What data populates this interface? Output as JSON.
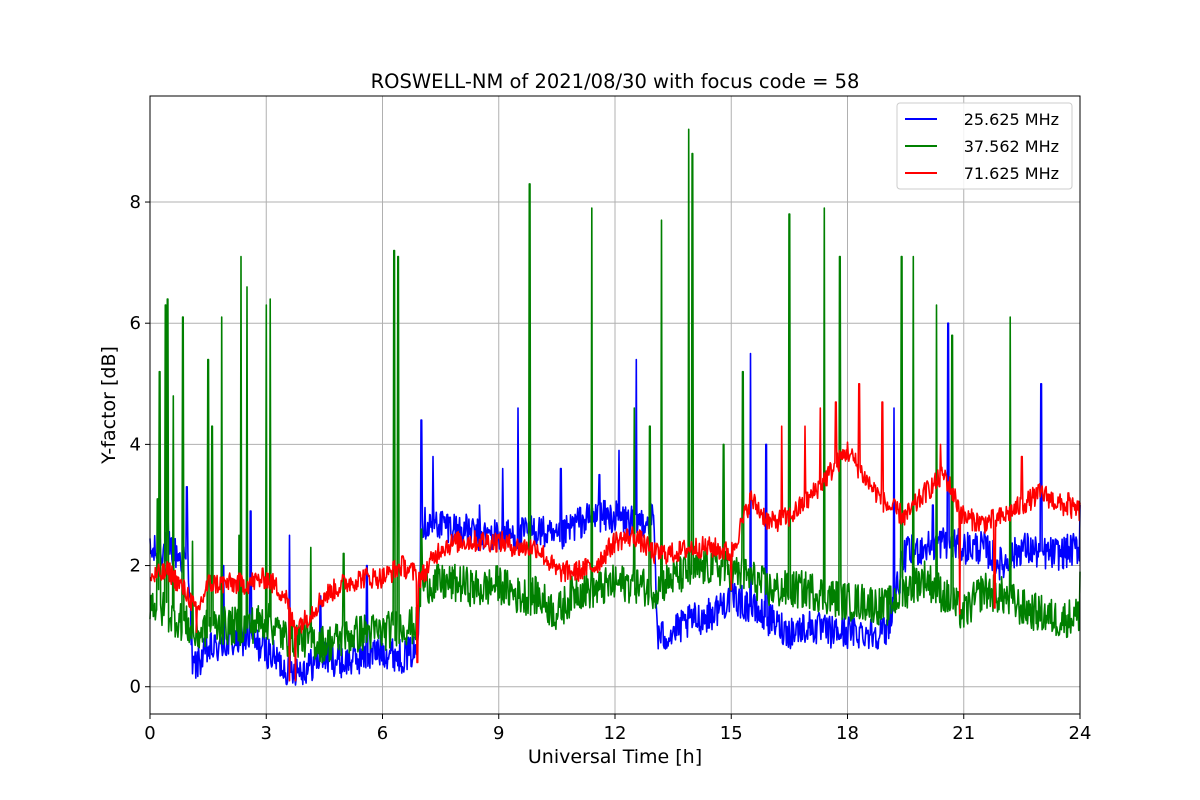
{
  "chart_data": {
    "type": "line",
    "title": "ROSWELL-NM of 2021/08/30 with focus code = 58",
    "xlabel": "Universal Time [h]",
    "ylabel": "Y-factor [dB]",
    "xlim": [
      0,
      24
    ],
    "ylim": [
      -0.45,
      9.75
    ],
    "xticks": [
      0,
      3,
      6,
      9,
      12,
      15,
      18,
      21,
      24
    ],
    "yticks": [
      0,
      2,
      4,
      6,
      8
    ],
    "grid": true,
    "legend_position": "top-right",
    "series": [
      {
        "name": "25.625 MHz",
        "color": "#0000ff",
        "x": [
          0,
          0.5,
          1.0,
          1.1,
          1.5,
          2,
          2.5,
          3,
          3.5,
          4,
          4.5,
          5,
          5.5,
          6,
          6.5,
          6.9,
          7.0,
          7.5,
          8,
          8.5,
          9,
          9.5,
          10,
          10.5,
          11,
          11.5,
          12,
          12.5,
          13,
          13.1,
          13.5,
          14,
          14.5,
          15,
          15.5,
          16,
          16.5,
          17,
          17.5,
          18,
          18.5,
          19,
          19.5,
          20,
          20.5,
          21,
          21.5,
          22,
          22.5,
          23,
          23.5,
          24
        ],
        "y": [
          2.2,
          2.3,
          2.0,
          0.3,
          0.6,
          0.7,
          0.8,
          0.6,
          0.3,
          0.3,
          0.5,
          0.4,
          0.5,
          0.6,
          0.5,
          0.6,
          2.7,
          2.7,
          2.6,
          2.5,
          2.5,
          2.5,
          2.6,
          2.4,
          2.7,
          2.8,
          2.8,
          2.7,
          2.8,
          0.8,
          0.9,
          1.1,
          1.2,
          1.5,
          1.3,
          1.1,
          0.9,
          1.0,
          0.9,
          0.9,
          0.9,
          0.9,
          2.2,
          2.3,
          2.4,
          2.3,
          2.3,
          2.0,
          2.3,
          2.2,
          2.2,
          2.3
        ],
        "spikes": [
          [
            0.25,
            2.6
          ],
          [
            0.45,
            2.9
          ],
          [
            0.95,
            3.3
          ],
          [
            1.9,
            2.0
          ],
          [
            2.5,
            2.1
          ],
          [
            2.6,
            2.9
          ],
          [
            3.6,
            2.5
          ],
          [
            4.4,
            1.5
          ],
          [
            5.6,
            2.0
          ],
          [
            7.0,
            4.4
          ],
          [
            7.3,
            3.8
          ],
          [
            8.5,
            3.0
          ],
          [
            9.1,
            3.6
          ],
          [
            9.5,
            4.6
          ],
          [
            10.6,
            3.6
          ],
          [
            11.6,
            3.5
          ],
          [
            12.1,
            3.9
          ],
          [
            12.55,
            5.4
          ],
          [
            15.5,
            5.5
          ],
          [
            15.9,
            4.0
          ],
          [
            19.2,
            4.6
          ],
          [
            20.2,
            4.5
          ],
          [
            20.6,
            6.0
          ],
          [
            20.2,
            3.0
          ],
          [
            23.0,
            5.0
          ],
          [
            24.0,
            3.0
          ]
        ]
      },
      {
        "name": "37.562 MHz",
        "color": "#008000",
        "x": [
          0,
          0.5,
          1.0,
          1.1,
          1.5,
          2,
          2.5,
          3,
          3.5,
          4,
          4.5,
          5,
          5.5,
          6,
          6.5,
          6.9,
          7.0,
          7.5,
          8,
          8.5,
          9,
          9.5,
          10,
          10.5,
          11,
          11.5,
          12,
          12.5,
          13,
          13.5,
          14,
          14.5,
          15,
          15.5,
          16,
          16.5,
          17,
          17.5,
          18,
          18.5,
          19,
          19.5,
          20,
          20.5,
          21,
          21.5,
          22,
          22.5,
          23,
          23.5,
          24
        ],
        "y": [
          1.4,
          1.2,
          1.0,
          0.8,
          1.0,
          1.0,
          1.0,
          1.1,
          0.8,
          0.8,
          0.7,
          0.8,
          0.9,
          0.9,
          1.0,
          1.0,
          1.7,
          1.7,
          1.7,
          1.6,
          1.7,
          1.5,
          1.5,
          1.2,
          1.6,
          1.6,
          1.7,
          1.7,
          1.6,
          1.8,
          1.9,
          2.0,
          1.9,
          1.8,
          1.6,
          1.6,
          1.6,
          1.5,
          1.4,
          1.4,
          1.3,
          1.6,
          1.8,
          1.5,
          1.2,
          1.6,
          1.5,
          1.3,
          1.2,
          1.1,
          1.2
        ],
        "spikes": [
          [
            0.2,
            3.1
          ],
          [
            0.25,
            5.2
          ],
          [
            0.4,
            6.3
          ],
          [
            0.45,
            6.4
          ],
          [
            0.6,
            4.8
          ],
          [
            0.85,
            6.1
          ],
          [
            1.1,
            2.4
          ],
          [
            1.5,
            5.4
          ],
          [
            1.6,
            4.3
          ],
          [
            1.85,
            6.1
          ],
          [
            2.3,
            2.5
          ],
          [
            2.35,
            7.1
          ],
          [
            2.5,
            6.6
          ],
          [
            3.0,
            6.3
          ],
          [
            3.1,
            6.4
          ],
          [
            4.15,
            2.3
          ],
          [
            5.0,
            2.2
          ],
          [
            6.3,
            7.2
          ],
          [
            6.4,
            7.1
          ],
          [
            7.0,
            2.6
          ],
          [
            9.8,
            8.3
          ],
          [
            11.4,
            7.9
          ],
          [
            12.5,
            4.6
          ],
          [
            12.9,
            4.3
          ],
          [
            13.2,
            7.7
          ],
          [
            13.9,
            9.2
          ],
          [
            14.0,
            8.8
          ],
          [
            14.8,
            4.0
          ],
          [
            15.3,
            5.2
          ],
          [
            16.5,
            7.8
          ],
          [
            17.4,
            7.9
          ],
          [
            17.8,
            7.1
          ],
          [
            19.4,
            7.1
          ],
          [
            19.7,
            7.1
          ],
          [
            20.3,
            6.3
          ],
          [
            20.7,
            5.8
          ],
          [
            22.2,
            6.1
          ],
          [
            24.0,
            1.9
          ]
        ]
      },
      {
        "name": "71.625 MHz",
        "color": "#ff0000",
        "x": [
          0,
          0.5,
          1.0,
          1.2,
          1.5,
          2,
          2.5,
          3,
          3.5,
          3.7,
          4,
          4.5,
          5,
          5.5,
          6,
          6.5,
          7,
          7.5,
          8,
          8.5,
          9,
          9.5,
          10,
          10.5,
          11,
          11.5,
          12,
          12.5,
          13,
          13.5,
          14,
          14.5,
          15,
          15.5,
          16,
          16.5,
          17,
          17.5,
          18,
          18.5,
          19,
          19.5,
          20,
          20.5,
          21,
          21.5,
          22,
          22.5,
          23,
          23.5,
          24
        ],
        "y": [
          1.8,
          1.9,
          1.5,
          1.2,
          1.7,
          1.7,
          1.7,
          1.8,
          1.5,
          1.0,
          1.1,
          1.5,
          1.7,
          1.8,
          1.8,
          2.0,
          1.8,
          2.3,
          2.4,
          2.4,
          2.4,
          2.3,
          2.3,
          1.9,
          1.9,
          2.0,
          2.4,
          2.5,
          2.2,
          2.2,
          2.3,
          2.3,
          2.2,
          3.1,
          2.7,
          2.8,
          3.1,
          3.5,
          3.9,
          3.4,
          3.0,
          2.8,
          3.2,
          3.5,
          2.8,
          2.7,
          2.8,
          3.0,
          3.2,
          3.0,
          2.9
        ],
        "spikes": [
          [
            1.2,
            0.9
          ],
          [
            3.6,
            0.1
          ],
          [
            3.75,
            0.1
          ],
          [
            6.9,
            0.4
          ],
          [
            15.0,
            1.6
          ],
          [
            16.3,
            4.3
          ],
          [
            16.9,
            4.3
          ],
          [
            17.3,
            4.6
          ],
          [
            17.7,
            4.7
          ],
          [
            18.3,
            5.0
          ],
          [
            18.9,
            4.7
          ],
          [
            20.4,
            4.0
          ],
          [
            20.9,
            1.2
          ],
          [
            21.8,
            1.3
          ],
          [
            22.5,
            3.8
          ],
          [
            23.7,
            3.2
          ]
        ]
      }
    ]
  }
}
